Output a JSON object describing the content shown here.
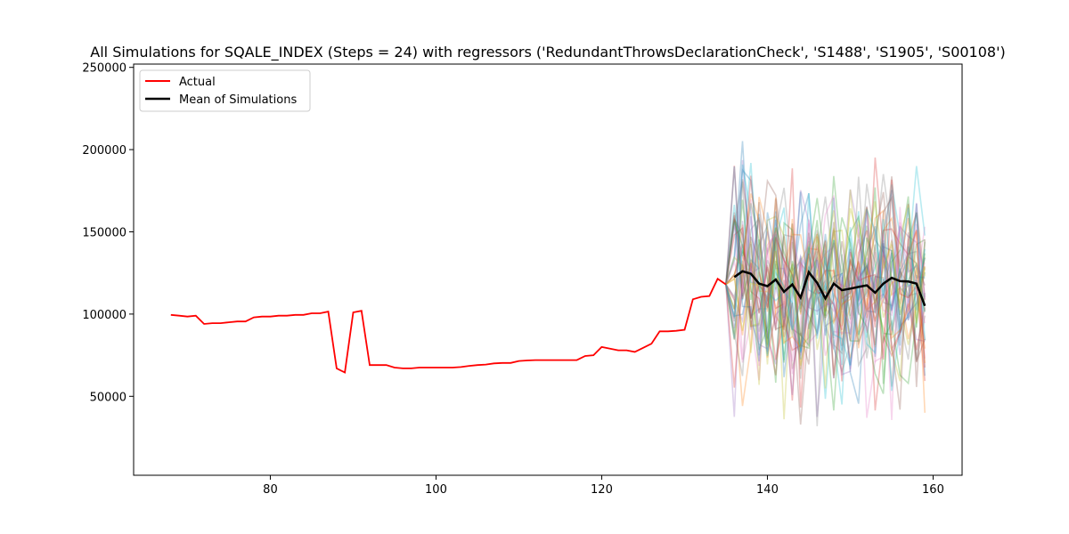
{
  "chart_data": {
    "type": "line",
    "title": "All Simulations for SQALE_INDEX (Steps = 24) with regressors ('RedundantThrowsDeclarationCheck', 'S1488', 'S1905', 'S00108')",
    "xlabel": "",
    "ylabel": "",
    "xlim": [
      63.5,
      163.5
    ],
    "ylim": [
      2000,
      252000
    ],
    "xticks": [
      80,
      100,
      120,
      140,
      160
    ],
    "yticks": [
      50000,
      100000,
      150000,
      200000,
      250000
    ],
    "grid": false,
    "legend": {
      "position": "top-left",
      "entries": [
        "Actual",
        "Mean of Simulations"
      ]
    },
    "simulation_count": 40,
    "simulation_alpha": 0.3,
    "simulation_colors": [
      "#1f77b4",
      "#ff7f0e",
      "#2ca02c",
      "#d62728",
      "#9467bd",
      "#8c564b",
      "#e377c2",
      "#7f7f7f",
      "#bcbd22",
      "#17becf"
    ],
    "series": [
      {
        "name": "Actual",
        "color": "#ff0000",
        "x": [
          68,
          69,
          70,
          71,
          72,
          73,
          74,
          75,
          76,
          77,
          78,
          79,
          80,
          81,
          82,
          83,
          84,
          85,
          86,
          87,
          88,
          89,
          90,
          91,
          92,
          93,
          94,
          95,
          96,
          97,
          98,
          99,
          100,
          101,
          102,
          103,
          104,
          105,
          106,
          107,
          108,
          109,
          110,
          111,
          112,
          113,
          114,
          115,
          116,
          117,
          118,
          119,
          120,
          121,
          122,
          123,
          124,
          125,
          126,
          127,
          128,
          129,
          130,
          131,
          132,
          133,
          134,
          135
        ],
        "y": [
          99500,
          99000,
          98500,
          99000,
          94000,
          94500,
          94500,
          95000,
          95500,
          95500,
          98000,
          98500,
          98500,
          99000,
          99000,
          99500,
          99500,
          100500,
          100500,
          101500,
          67000,
          64500,
          101000,
          102000,
          69000,
          69000,
          69000,
          67500,
          67000,
          67000,
          67500,
          67500,
          67500,
          67500,
          67500,
          67800,
          68500,
          69000,
          69300,
          70000,
          70300,
          70300,
          71500,
          71800,
          72000,
          72000,
          72000,
          72000,
          72000,
          72000,
          74500,
          75000,
          80000,
          79000,
          78000,
          78000,
          77000,
          79500,
          82000,
          89500,
          89500,
          89800,
          90500,
          109000,
          110500,
          111000,
          121500,
          118000
        ]
      },
      {
        "name": "Mean of Simulations",
        "color": "#000000",
        "x": [
          136,
          137,
          138,
          139,
          140,
          141,
          142,
          143,
          144,
          145,
          146,
          147,
          148,
          149,
          150,
          151,
          152,
          153,
          154,
          155,
          156,
          157,
          158,
          159
        ],
        "y": [
          122500,
          126000,
          124500,
          118500,
          117000,
          121000,
          113500,
          118000,
          110000,
          125500,
          119000,
          109500,
          118500,
          114500,
          115500,
          116500,
          117500,
          113000,
          118500,
          122000,
          120000,
          119800,
          118500,
          105000
        ]
      }
    ]
  }
}
